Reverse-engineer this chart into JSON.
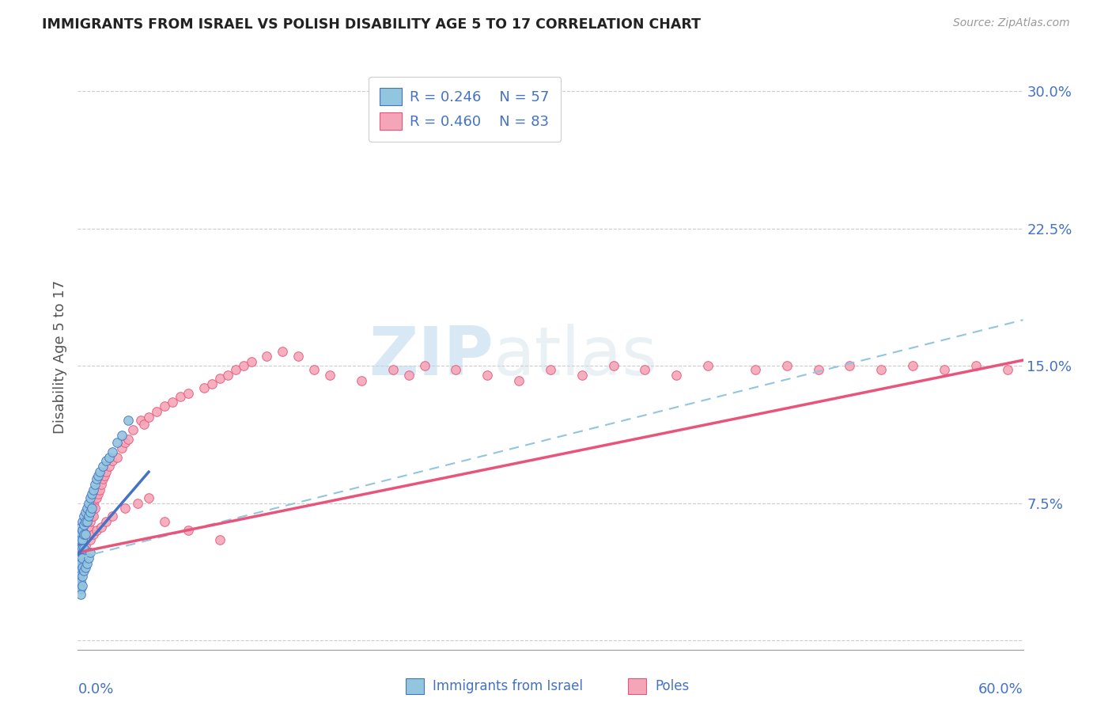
{
  "title": "IMMIGRANTS FROM ISRAEL VS POLISH DISABILITY AGE 5 TO 17 CORRELATION CHART",
  "source": "Source: ZipAtlas.com",
  "ylabel": "Disability Age 5 to 17",
  "yticks": [
    0.0,
    0.075,
    0.15,
    0.225,
    0.3
  ],
  "ytick_labels": [
    "",
    "7.5%",
    "15.0%",
    "22.5%",
    "30.0%"
  ],
  "xlim": [
    0.0,
    0.6
  ],
  "ylim": [
    -0.005,
    0.315
  ],
  "legend_r1": "R = 0.246",
  "legend_n1": "N = 57",
  "legend_r2": "R = 0.460",
  "legend_n2": "N = 83",
  "legend_label1": "Immigrants from Israel",
  "legend_label2": "Poles",
  "color_israel": "#92C5DE",
  "color_poles": "#F4A6B8",
  "color_line_israel": "#4472C4",
  "color_line_poles": "#E8547A",
  "color_dashed": "#92C5DE",
  "color_axis_labels": "#4472C4",
  "color_grid": "#cccccc",
  "israel_line_x0": 0.0,
  "israel_line_y0": 0.047,
  "israel_line_x1": 0.045,
  "israel_line_y1": 0.092,
  "poles_line_x0": 0.0,
  "poles_line_y0": 0.048,
  "poles_line_x1": 0.6,
  "poles_line_y1": 0.153,
  "dashed_line_x0": 0.0,
  "dashed_line_y0": 0.045,
  "dashed_line_x1": 0.6,
  "dashed_line_y1": 0.175,
  "israel_x": [
    0.001,
    0.001,
    0.001,
    0.001,
    0.001,
    0.002,
    0.002,
    0.002,
    0.002,
    0.002,
    0.002,
    0.002,
    0.003,
    0.003,
    0.003,
    0.003,
    0.003,
    0.003,
    0.004,
    0.004,
    0.004,
    0.004,
    0.005,
    0.005,
    0.005,
    0.006,
    0.006,
    0.007,
    0.007,
    0.008,
    0.008,
    0.009,
    0.009,
    0.01,
    0.011,
    0.012,
    0.013,
    0.014,
    0.016,
    0.018,
    0.02,
    0.022,
    0.025,
    0.028,
    0.032,
    0.001,
    0.001,
    0.002,
    0.002,
    0.002,
    0.003,
    0.003,
    0.004,
    0.005,
    0.006,
    0.007,
    0.008
  ],
  "israel_y": [
    0.05,
    0.055,
    0.048,
    0.044,
    0.04,
    0.058,
    0.062,
    0.055,
    0.05,
    0.045,
    0.042,
    0.038,
    0.065,
    0.06,
    0.055,
    0.05,
    0.045,
    0.04,
    0.068,
    0.063,
    0.058,
    0.05,
    0.07,
    0.065,
    0.058,
    0.072,
    0.065,
    0.075,
    0.068,
    0.078,
    0.07,
    0.08,
    0.072,
    0.082,
    0.085,
    0.088,
    0.09,
    0.092,
    0.095,
    0.098,
    0.1,
    0.103,
    0.108,
    0.112,
    0.12,
    0.035,
    0.03,
    0.032,
    0.028,
    0.025,
    0.035,
    0.03,
    0.038,
    0.04,
    0.042,
    0.045,
    0.048
  ],
  "poles_x": [
    0.002,
    0.003,
    0.004,
    0.005,
    0.005,
    0.006,
    0.007,
    0.007,
    0.008,
    0.008,
    0.009,
    0.01,
    0.01,
    0.011,
    0.012,
    0.013,
    0.014,
    0.015,
    0.016,
    0.017,
    0.018,
    0.02,
    0.022,
    0.025,
    0.028,
    0.03,
    0.032,
    0.035,
    0.04,
    0.042,
    0.045,
    0.05,
    0.055,
    0.06,
    0.065,
    0.07,
    0.08,
    0.085,
    0.09,
    0.095,
    0.1,
    0.105,
    0.11,
    0.12,
    0.13,
    0.14,
    0.15,
    0.16,
    0.18,
    0.2,
    0.21,
    0.22,
    0.24,
    0.26,
    0.28,
    0.3,
    0.32,
    0.34,
    0.36,
    0.38,
    0.4,
    0.43,
    0.45,
    0.47,
    0.49,
    0.51,
    0.53,
    0.55,
    0.57,
    0.59,
    0.005,
    0.008,
    0.01,
    0.012,
    0.015,
    0.018,
    0.022,
    0.03,
    0.038,
    0.045,
    0.055,
    0.07,
    0.09
  ],
  "poles_y": [
    0.058,
    0.06,
    0.062,
    0.065,
    0.058,
    0.068,
    0.07,
    0.062,
    0.072,
    0.065,
    0.068,
    0.075,
    0.068,
    0.072,
    0.078,
    0.08,
    0.082,
    0.085,
    0.088,
    0.09,
    0.092,
    0.095,
    0.098,
    0.1,
    0.105,
    0.108,
    0.11,
    0.115,
    0.12,
    0.118,
    0.122,
    0.125,
    0.128,
    0.13,
    0.133,
    0.135,
    0.138,
    0.14,
    0.143,
    0.145,
    0.148,
    0.15,
    0.152,
    0.155,
    0.158,
    0.155,
    0.148,
    0.145,
    0.142,
    0.148,
    0.145,
    0.15,
    0.148,
    0.145,
    0.142,
    0.148,
    0.145,
    0.15,
    0.148,
    0.145,
    0.15,
    0.148,
    0.15,
    0.148,
    0.15,
    0.148,
    0.15,
    0.148,
    0.15,
    0.148,
    0.052,
    0.055,
    0.058,
    0.06,
    0.062,
    0.065,
    0.068,
    0.072,
    0.075,
    0.078,
    0.065,
    0.06,
    0.055
  ]
}
